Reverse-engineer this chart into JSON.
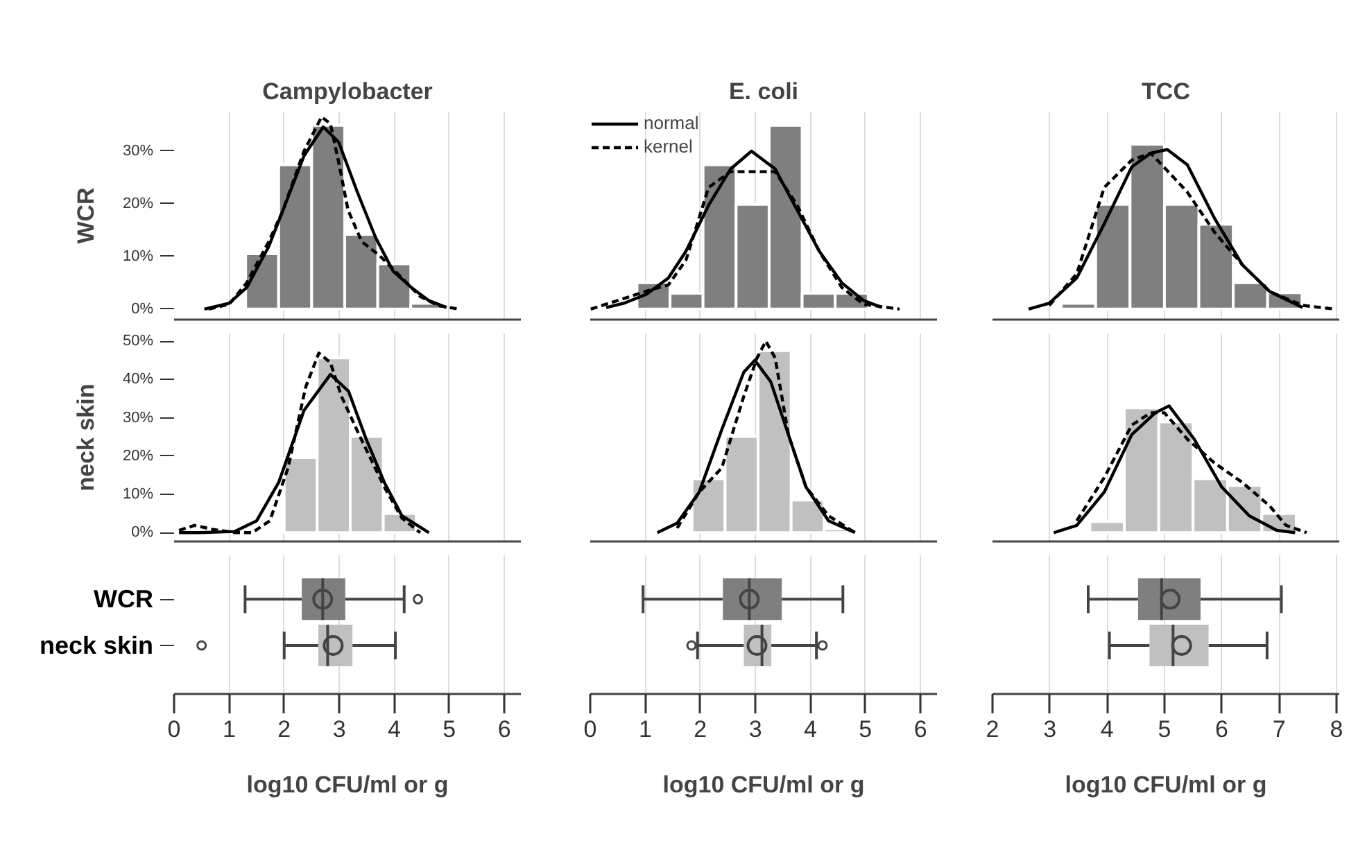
{
  "chart_data": [
    {
      "type": "histogram",
      "title": "Campylobacter",
      "ylabel": "WCR",
      "bins": [
        1.3,
        1.9,
        2.5,
        3.1,
        3.7,
        4.3,
        4.9
      ],
      "values": [
        10.5,
        27.4,
        34.9,
        14.2,
        8.6,
        1.1
      ],
      "color": "#7f7f7f",
      "series": [
        {
          "type": "line",
          "line_style": "solid",
          "color": "#000000",
          "x": [
            0.55,
            1.0,
            1.32,
            1.72,
            1.98,
            2.36,
            2.71,
            2.99,
            3.33,
            3.66,
            3.98,
            4.31,
            4.63,
            4.95
          ],
          "values": [
            0,
            1.1,
            4.1,
            11.9,
            18.8,
            29.1,
            34.6,
            31.7,
            22.2,
            13.6,
            7.2,
            4.1,
            1.6,
            0.3
          ]
        },
        {
          "type": "line",
          "line_style": "dashed",
          "color": "#000000",
          "x": [
            0.63,
            1.0,
            1.32,
            1.72,
            1.98,
            2.36,
            2.68,
            2.84,
            3.0,
            3.16,
            3.41,
            3.73,
            4.14,
            4.47,
            4.79,
            5.16
          ],
          "values": [
            0,
            0.9,
            5,
            12.8,
            18.8,
            30,
            36.5,
            35.2,
            27.4,
            18.8,
            12.8,
            10.2,
            5.9,
            2.4,
            0.7,
            0
          ]
        }
      ],
      "xlim": [
        0,
        6.3
      ],
      "xticks": [
        0,
        1,
        2,
        3,
        4,
        5,
        6
      ],
      "ylim": [
        -2,
        37.5
      ],
      "yticks": [
        {
          "value": 0,
          "label": "0%"
        },
        {
          "value": 10,
          "label": "10%"
        },
        {
          "value": 20,
          "label": "20%"
        },
        {
          "value": 30,
          "label": "30%"
        }
      ],
      "tick_labels": "y",
      "grid": "x"
    },
    {
      "type": "histogram",
      "title": "E. coli",
      "bins": [
        0.85,
        1.45,
        2.05,
        2.65,
        3.25,
        3.85,
        4.45,
        5.05
      ],
      "values": [
        5,
        3,
        27.4,
        19.9,
        34.9,
        3,
        3
      ],
      "color": "#7f7f7f",
      "legend": "top left",
      "series": [
        {
          "name": "normal",
          "type": "line",
          "line_style": "solid",
          "color": "#000000",
          "x": [
            0.29,
            0.61,
            1.02,
            1.42,
            1.74,
            2.15,
            2.55,
            2.93,
            3.36,
            3.76,
            4.16,
            4.57,
            4.97,
            5.3
          ],
          "values": [
            0.3,
            1.1,
            2.8,
            5.9,
            11,
            19.7,
            26.6,
            30,
            26.6,
            18.8,
            11,
            5,
            1.6,
            0.3
          ]
        },
        {
          "name": "kernel",
          "type": "line",
          "line_style": "dashed",
          "color": "#000000",
          "x": [
            0.01,
            0.61,
            1.02,
            1.42,
            1.74,
            2.15,
            2.55,
            2.93,
            3.36,
            3.76,
            4.16,
            4.57,
            4.97,
            5.62
          ],
          "values": [
            0,
            2,
            3.4,
            4.6,
            9.3,
            23.1,
            26.1,
            26.1,
            26.1,
            19.7,
            11,
            4.1,
            0.9,
            0
          ]
        }
      ],
      "xlim": [
        0,
        6.3
      ],
      "xticks": [
        0,
        1,
        2,
        3,
        4,
        5,
        6
      ],
      "ylim": [
        -2,
        37.5
      ],
      "tick_labels": false,
      "grid": "x"
    },
    {
      "type": "histogram",
      "title": "TCC",
      "bins": [
        3.2,
        3.8,
        4.4,
        5.0,
        5.6,
        6.2,
        6.8,
        7.4
      ],
      "values": [
        1.1,
        19.9,
        31.3,
        19.9,
        16.1,
        5,
        3.1
      ],
      "color": "#7f7f7f",
      "series": [
        {
          "type": "line",
          "line_style": "solid",
          "color": "#000000",
          "x": [
            2.63,
            2.99,
            3.47,
            3.95,
            4.43,
            4.76,
            5.05,
            5.4,
            5.88,
            6.36,
            6.84,
            7.41
          ],
          "values": [
            0,
            1.1,
            5.9,
            16.2,
            27,
            29.6,
            30.3,
            27.4,
            17.1,
            8.4,
            3.3,
            0.3
          ]
        },
        {
          "type": "line",
          "line_style": "dashed",
          "color": "#000000",
          "x": [
            2.99,
            3.47,
            3.95,
            4.43,
            4.76,
            4.92,
            5.4,
            5.88,
            6.36,
            6.84,
            7.41,
            7.97
          ],
          "values": [
            0.7,
            6.7,
            23.1,
            28.3,
            29.6,
            27.8,
            22.2,
            14.5,
            8.4,
            3.3,
            0.7,
            0
          ]
        }
      ],
      "xlim": [
        2,
        8.05
      ],
      "xticks": [
        2,
        3,
        4,
        5,
        6,
        7,
        8
      ],
      "ylim": [
        -2,
        37.5
      ],
      "tick_labels": false,
      "grid": "x"
    },
    {
      "type": "histogram",
      "ylabel": "neck skin",
      "bins": [
        2.0,
        2.6,
        3.2,
        3.8,
        4.4
      ],
      "values": [
        19.6,
        45.6,
        25.1,
        5
      ],
      "color": "#c0c0c0",
      "series": [
        {
          "type": "line",
          "line_style": "solid",
          "color": "#000000",
          "x": [
            0.09,
            0.45,
            1.1,
            1.5,
            1.9,
            2.36,
            2.84,
            3.17,
            3.49,
            3.82,
            4.14,
            4.63
          ],
          "values": [
            0,
            0,
            0.3,
            3.1,
            13.1,
            31.9,
            41.3,
            36.9,
            24.4,
            13.1,
            4.4,
            0
          ]
        },
        {
          "type": "line",
          "line_style": "dashed",
          "color": "#000000",
          "x": [
            0.09,
            0.37,
            0.69,
            1.1,
            1.42,
            1.74,
            2.07,
            2.39,
            2.63,
            2.84,
            3.04,
            3.36,
            3.82,
            4.14,
            4.47
          ],
          "values": [
            0.6,
            1.9,
            0.9,
            0,
            0,
            3.1,
            16.9,
            38,
            46.9,
            44.4,
            35.6,
            25.6,
            11.9,
            3.8,
            0
          ]
        }
      ],
      "xlim": [
        0,
        6.3
      ],
      "xticks": [
        0,
        1,
        2,
        3,
        4,
        5,
        6
      ],
      "ylim": [
        -2.3,
        52
      ],
      "yticks": [
        {
          "value": 0,
          "label": "0%"
        },
        {
          "value": 10,
          "label": "10%"
        },
        {
          "value": 20,
          "label": "20%"
        },
        {
          "value": 30,
          "label": "30%"
        },
        {
          "value": 40,
          "label": "40%"
        },
        {
          "value": 50,
          "label": "50%"
        }
      ],
      "tick_labels": "y",
      "grid": "x"
    },
    {
      "type": "histogram",
      "bins": [
        1.85,
        2.45,
        3.05,
        3.65,
        4.25,
        4.85
      ],
      "values": [
        14.1,
        25.1,
        47.5,
        8.5,
        1
      ],
      "color": "#c0c0c0",
      "series": [
        {
          "type": "line",
          "line_style": "solid",
          "color": "#000000",
          "x": [
            1.22,
            1.58,
            1.98,
            2.39,
            2.79,
            2.99,
            3.28,
            3.6,
            3.92,
            4.33,
            4.81
          ],
          "values": [
            0,
            2.5,
            10.6,
            26.9,
            41.9,
            45,
            39.4,
            25.6,
            11.9,
            3.1,
            0
          ]
        },
        {
          "type": "line",
          "line_style": "dashed",
          "color": "#000000",
          "x": [
            1.58,
            1.98,
            2.39,
            2.79,
            3.03,
            3.19,
            3.36,
            3.6,
            3.92,
            4.33,
            4.81
          ],
          "values": [
            1.2,
            10.6,
            16.9,
            35.6,
            45.6,
            50,
            45.6,
            25.6,
            11.9,
            4.4,
            0
          ]
        }
      ],
      "xlim": [
        0,
        6.3
      ],
      "xticks": [
        0,
        1,
        2,
        3,
        4,
        5,
        6
      ],
      "ylim": [
        -2.3,
        52
      ],
      "tick_labels": false,
      "grid": "x"
    },
    {
      "type": "histogram",
      "bins": [
        3.7,
        4.3,
        4.9,
        5.5,
        6.1,
        6.7,
        7.3
      ],
      "values": [
        2.9,
        32.6,
        28.9,
        14.1,
        12.3,
        5
      ],
      "color": "#c0c0c0",
      "series": [
        {
          "type": "line",
          "line_style": "solid",
          "color": "#000000",
          "x": [
            3.07,
            3.47,
            3.95,
            4.43,
            4.84,
            5.08,
            5.52,
            6.0,
            6.48,
            6.96,
            7.28
          ],
          "values": [
            0,
            1.9,
            10.6,
            25.6,
            31.3,
            33.1,
            24.4,
            11.9,
            4.4,
            0.6,
            0
          ]
        },
        {
          "type": "line",
          "line_style": "dashed",
          "color": "#000000",
          "x": [
            3.47,
            3.95,
            4.43,
            4.76,
            5.0,
            5.4,
            5.88,
            6.36,
            6.84,
            7.12,
            7.48
          ],
          "values": [
            3.1,
            14.4,
            28.1,
            31.3,
            31.3,
            24.4,
            18.1,
            13.1,
            6.9,
            1.9,
            0
          ]
        }
      ],
      "xlim": [
        2,
        8.05
      ],
      "xticks": [
        2,
        3,
        4,
        5,
        6,
        7,
        8
      ],
      "ylim": [
        -2.3,
        52
      ],
      "tick_labels": false,
      "grid": "x"
    },
    {
      "type": "box",
      "orientation": "horizontal",
      "xlabel": "log10 CFU/ml or g",
      "categories": [
        "WCR",
        "neck skin"
      ],
      "colors": [
        "#7f7f7f",
        "#c0c0c0"
      ],
      "boxes": [
        {
          "low": 1.29,
          "q1": 2.32,
          "median": 2.7,
          "q3": 3.11,
          "high": 4.18,
          "mean": 2.7,
          "outliers": [
            4.43
          ]
        },
        {
          "low": 2.0,
          "q1": 2.62,
          "median": 2.79,
          "q3": 3.24,
          "high": 4.02,
          "mean": 2.89,
          "outliers": [
            0.5
          ]
        }
      ],
      "xlim": [
        0,
        6.3
      ],
      "xticks": [
        0,
        1,
        2,
        3,
        4,
        5,
        6
      ],
      "grid": "x"
    },
    {
      "type": "box",
      "orientation": "horizontal",
      "xlabel": "log10 CFU/ml or g",
      "categories": [
        null,
        null
      ],
      "colors": [
        "#7f7f7f",
        "#c0c0c0"
      ],
      "boxes": [
        {
          "low": 0.96,
          "q1": 2.41,
          "median": 2.89,
          "q3": 3.48,
          "high": 4.59,
          "mean": 2.89
        },
        {
          "low": 1.95,
          "q1": 2.79,
          "median": 3.12,
          "q3": 3.29,
          "high": 4.11,
          "mean": 3.03,
          "outliers": [
            1.84,
            4.22
          ]
        }
      ],
      "xlim": [
        0,
        6.3
      ],
      "xticks": [
        0,
        1,
        2,
        3,
        4,
        5,
        6
      ],
      "tick_labels": "x",
      "grid": "x"
    },
    {
      "type": "box",
      "orientation": "horizontal",
      "xlabel": "log10 CFU/ml or g",
      "categories": [
        null,
        null
      ],
      "colors": [
        "#7f7f7f",
        "#c0c0c0"
      ],
      "boxes": [
        {
          "low": 3.67,
          "q1": 4.54,
          "median": 4.95,
          "q3": 5.63,
          "high": 7.04,
          "mean": 5.1
        },
        {
          "low": 4.04,
          "q1": 4.74,
          "median": 5.15,
          "q3": 5.77,
          "high": 6.79,
          "mean": 5.3
        }
      ],
      "xlim": [
        2,
        8.05
      ],
      "xticks": [
        2,
        3,
        4,
        5,
        6,
        7,
        8
      ],
      "tick_labels": "x",
      "grid": "x"
    }
  ]
}
